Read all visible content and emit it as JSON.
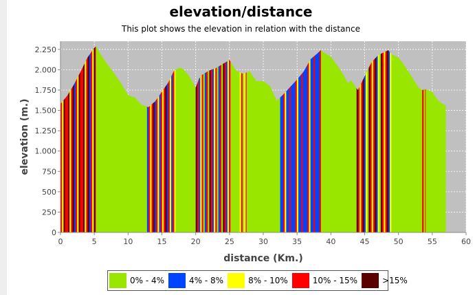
{
  "chart_data": {
    "type": "area",
    "title": "elevation/distance",
    "subtitle": "This plot shows the elevation in relation with the distance",
    "xlabel": "distance (Km.)",
    "ylabel": "elevation (m.)",
    "xlim": [
      0,
      60
    ],
    "ylim": [
      0,
      2350
    ],
    "x_ticks": [
      0,
      5,
      10,
      15,
      20,
      25,
      30,
      35,
      40,
      45,
      50,
      55,
      60
    ],
    "y_ticks": [
      0,
      250,
      500,
      750,
      1000,
      1250,
      1500,
      1750,
      2000,
      2250
    ],
    "y_tick_labels": [
      "0",
      "250",
      "500",
      "750",
      "1.000",
      "1.250",
      "1.500",
      "1.750",
      "2.000",
      "2.250"
    ],
    "grid": true,
    "legend_position": "bottom",
    "legend": [
      {
        "label": "0% - 4%",
        "color": "#99e600"
      },
      {
        "label": "4% - 8%",
        "color": "#0044ff"
      },
      {
        "label": "8% - 10%",
        "color": "#ffff00"
      },
      {
        "label": "10% - 15%",
        "color": "#ff0000"
      },
      {
        "label": ">15%",
        "color": "#5a0000"
      }
    ],
    "profile": [
      [
        0,
        1580
      ],
      [
        1,
        1680
      ],
      [
        2,
        1820
      ],
      [
        3,
        1980
      ],
      [
        4,
        2150
      ],
      [
        5,
        2270
      ],
      [
        5.3,
        2290
      ],
      [
        6,
        2180
      ],
      [
        7,
        2060
      ],
      [
        8,
        1950
      ],
      [
        9,
        1830
      ],
      [
        10,
        1690
      ],
      [
        11,
        1660
      ],
      [
        12,
        1570
      ],
      [
        13,
        1540
      ],
      [
        14,
        1610
      ],
      [
        15,
        1730
      ],
      [
        16,
        1850
      ],
      [
        16.8,
        1990
      ],
      [
        17.5,
        2020
      ],
      [
        18,
        2020
      ],
      [
        19,
        1930
      ],
      [
        20,
        1780
      ],
      [
        20.5,
        1890
      ],
      [
        21,
        1940
      ],
      [
        22,
        1990
      ],
      [
        23,
        2020
      ],
      [
        24,
        2070
      ],
      [
        25,
        2120
      ],
      [
        26,
        1990
      ],
      [
        27,
        1950
      ],
      [
        28,
        1980
      ],
      [
        29,
        1860
      ],
      [
        30,
        1860
      ],
      [
        31,
        1800
      ],
      [
        32,
        1620
      ],
      [
        33,
        1700
      ],
      [
        34,
        1790
      ],
      [
        35,
        1880
      ],
      [
        36,
        1980
      ],
      [
        37,
        2130
      ],
      [
        38,
        2200
      ],
      [
        38.5,
        2240
      ],
      [
        39,
        2210
      ],
      [
        40,
        2160
      ],
      [
        41,
        2050
      ],
      [
        42,
        1920
      ],
      [
        42.5,
        1840
      ],
      [
        43,
        1870
      ],
      [
        44,
        1750
      ],
      [
        45,
        1920
      ],
      [
        46,
        2090
      ],
      [
        47,
        2180
      ],
      [
        48,
        2220
      ],
      [
        48.5,
        2240
      ],
      [
        49,
        2190
      ],
      [
        50,
        2150
      ],
      [
        51,
        2040
      ],
      [
        52,
        1910
      ],
      [
        53,
        1780
      ],
      [
        53.5,
        1750
      ],
      [
        54,
        1760
      ],
      [
        55,
        1730
      ],
      [
        56,
        1610
      ],
      [
        57,
        1560
      ]
    ],
    "gradient_segments": [
      {
        "from": 0,
        "to": 5.2,
        "class": "steep",
        "pattern": [
          "#ff0000",
          "#ffff00",
          "#5a0000",
          "#ff0000",
          "#ff0000",
          "#5a0000",
          "#ffff00",
          "#ff0000",
          "#5a0000",
          "#0044ff"
        ]
      },
      {
        "from": 5.2,
        "to": 12.8,
        "class": "0% - 4%"
      },
      {
        "from": 12.8,
        "to": 17,
        "class": "steep",
        "pattern": [
          "#0044ff",
          "#ff0000",
          "#ffff00",
          "#ff0000",
          "#5a0000",
          "#0044ff",
          "#ff0000",
          "#ffff00"
        ]
      },
      {
        "from": 17,
        "to": 20,
        "class": "0% - 4%"
      },
      {
        "from": 20,
        "to": 25.2,
        "class": "steep",
        "pattern": [
          "#5a0000",
          "#ff0000",
          "#0044ff",
          "#ffff00",
          "#ff0000",
          "#99e600",
          "#0044ff",
          "#ff0000",
          "#99e600"
        ]
      },
      {
        "from": 25.2,
        "to": 26.5,
        "class": "0% - 4%"
      },
      {
        "from": 26.5,
        "to": 27.5,
        "class": "steep",
        "pattern": [
          "#ffff00",
          "#ff0000",
          "#99e600"
        ]
      },
      {
        "from": 27.5,
        "to": 32.5,
        "class": "0% - 4%"
      },
      {
        "from": 32.5,
        "to": 38.5,
        "class": "steep",
        "pattern": [
          "#0044ff",
          "#0044ff",
          "#ff0000",
          "#ffff00",
          "#0044ff",
          "#0044ff",
          "#ff0000",
          "#0044ff"
        ]
      },
      {
        "from": 38.5,
        "to": 43.8,
        "class": "0% - 4%"
      },
      {
        "from": 43.8,
        "to": 49,
        "class": "steep",
        "pattern": [
          "#5a0000",
          "#ff0000",
          "#ffff00",
          "#ff0000",
          "#5a0000",
          "#0044ff",
          "#ffff00",
          "#99e600"
        ]
      },
      {
        "from": 49,
        "to": 53.5,
        "class": "0% - 4%"
      },
      {
        "from": 53.5,
        "to": 54,
        "class": "steep",
        "pattern": [
          "#ff0000",
          "#99e600"
        ]
      },
      {
        "from": 54,
        "to": 57,
        "class": "0% - 4%"
      }
    ]
  }
}
